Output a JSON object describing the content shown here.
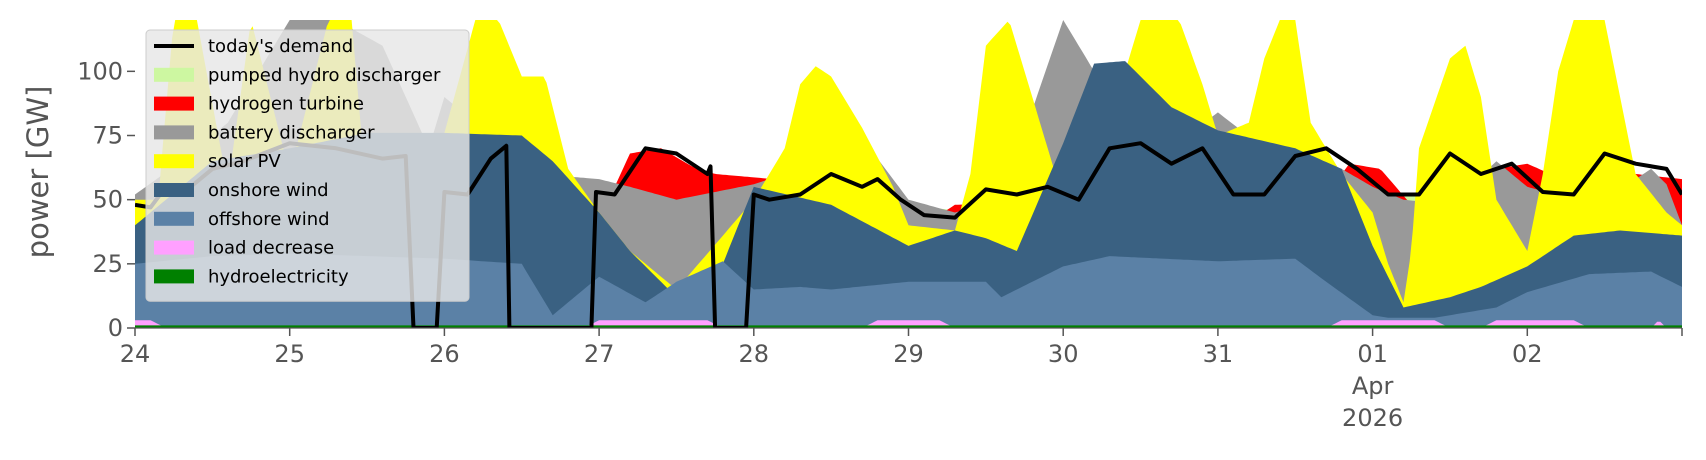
{
  "chart_data": {
    "type": "area",
    "title": "",
    "xlabel": "",
    "ylabel": "power [GW]",
    "ylim": [
      0,
      120
    ],
    "y_ticks": [
      0,
      25,
      50,
      75,
      100
    ],
    "x_start": "2026-03-24",
    "x_end": "2026-04-03",
    "x_tick_labels": [
      "24",
      "25",
      "26",
      "27",
      "28",
      "29",
      "30",
      "31",
      "01",
      "02"
    ],
    "x_secondary_label": [
      "Apr",
      "2026"
    ],
    "grid": false,
    "legend_position": "top-left",
    "layer_order": [
      "hydroelectricity",
      "load decrease",
      "offshore wind",
      "onshore wind",
      "solar PV",
      "battery discharger",
      "hydrogen turbine",
      "pumped hydro discharger"
    ],
    "series": [
      {
        "name": "hydroelectricity",
        "color": "#008000",
        "x": [
          24,
          25,
          26,
          27,
          28,
          29,
          30,
          31,
          32,
          33,
          34
        ],
        "values": [
          1,
          1,
          1,
          1,
          1,
          1,
          1,
          1,
          1,
          1,
          1
        ]
      },
      {
        "name": "load decrease",
        "color": "#ffa0ff",
        "x": [
          24,
          24.1,
          24.2,
          24.3,
          26.9,
          27.0,
          27.1,
          27.7,
          27.8,
          28.7,
          28.8,
          29.2,
          29.3,
          31.7,
          31.8,
          32.4,
          32.5,
          32.7,
          32.8,
          33.3,
          33.4,
          33.8,
          33.85,
          33.9
        ],
        "values": [
          3,
          3,
          0,
          0,
          0,
          3,
          3,
          3,
          0,
          0,
          3,
          3,
          0,
          0,
          3,
          3,
          0,
          0,
          3,
          3,
          0,
          0,
          3,
          0
        ]
      },
      {
        "name": "offshore wind",
        "color": "#5b81a6",
        "x": [
          24,
          24.5,
          25,
          25.5,
          26,
          26.5,
          26.7,
          27,
          27.3,
          27.5,
          27.8,
          28,
          28.3,
          28.5,
          29,
          29.5,
          29.6,
          30,
          30.3,
          31,
          31.5,
          31.7,
          32,
          32.1,
          32.4,
          32.6,
          32.8,
          33,
          33.4,
          33.8,
          34
        ],
        "values": [
          25,
          28,
          29,
          28,
          27,
          25,
          5,
          20,
          10,
          18,
          26,
          15,
          16,
          15,
          18,
          18,
          12,
          24,
          28,
          26,
          27,
          18,
          5,
          4,
          4,
          6,
          8,
          14,
          21,
          22,
          16
        ]
      },
      {
        "name": "onshore wind",
        "color": "#3a6182",
        "x": [
          24,
          24.5,
          25,
          25.5,
          26,
          26.5,
          26.7,
          27,
          27.2,
          27.5,
          27.8,
          28,
          28.5,
          29,
          29.3,
          29.5,
          29.7,
          30,
          30.2,
          30.4,
          30.7,
          31,
          31.5,
          31.8,
          32,
          32.2,
          32.5,
          32.7,
          33,
          33.3,
          33.6,
          34
        ],
        "values": [
          40,
          65,
          70,
          76,
          76,
          75,
          65,
          45,
          30,
          12,
          25,
          55,
          48,
          32,
          38,
          35,
          30,
          72,
          103,
          104,
          86,
          77,
          70,
          62,
          32,
          8,
          12,
          16,
          24,
          36,
          38,
          36
        ]
      },
      {
        "name": "solar PV",
        "color": "#ffff00",
        "x": [
          24,
          24.15,
          24.25,
          24.4,
          24.6,
          24.75,
          25,
          25.25,
          25.4,
          25.5,
          25.75,
          26,
          26.2,
          26.35,
          26.5,
          26.65,
          26.8,
          27,
          27.2,
          27.5,
          28,
          28.2,
          28.3,
          28.4,
          28.5,
          28.7,
          28.9,
          29,
          29.3,
          29.4,
          29.5,
          29.65,
          29.8,
          29.95,
          30,
          30.3,
          30.5,
          30.6,
          30.75,
          30.9,
          31,
          31.2,
          31.3,
          31.4,
          31.5,
          31.6,
          31.8,
          32,
          32.1,
          32.2,
          32.25,
          32.3,
          32.5,
          32.6,
          32.7,
          32.8,
          33,
          33.1,
          33.2,
          33.3,
          33.5,
          33.7,
          33.9,
          34
        ],
        "values": [
          50,
          50,
          120,
          120,
          55,
          120,
          60,
          120,
          120,
          50,
          60,
          76,
          120,
          120,
          98,
          98,
          62,
          45,
          30,
          15,
          50,
          70,
          95,
          102,
          98,
          78,
          55,
          40,
          38,
          60,
          110,
          120,
          90,
          60,
          50,
          80,
          120,
          120,
          120,
          95,
          75,
          80,
          105,
          120,
          120,
          80,
          60,
          45,
          25,
          10,
          30,
          70,
          105,
          110,
          90,
          50,
          30,
          60,
          100,
          120,
          120,
          60,
          45,
          40
        ]
      },
      {
        "name": "battery discharger",
        "color": "#999999",
        "x": [
          24,
          24.3,
          24.6,
          25,
          25.3,
          25.6,
          25.9,
          26,
          26.3,
          26.6,
          27,
          27.2,
          27.5,
          28,
          28.3,
          28.5,
          28.8,
          29,
          29.3,
          29.6,
          30,
          30.3,
          30.6,
          30.8,
          31,
          31.3,
          31.6,
          31.8,
          32,
          32.2,
          32.5,
          32.8,
          33,
          33.3,
          33.6,
          33.8,
          33.9,
          34
        ],
        "values": [
          52,
          65,
          80,
          120,
          120,
          110,
          70,
          90,
          75,
          60,
          58,
          55,
          50,
          56,
          62,
          58,
          66,
          50,
          45,
          50,
          120,
          90,
          80,
          75,
          84,
          70,
          65,
          62,
          55,
          50,
          48,
          65,
          55,
          50,
          54,
          62,
          56,
          40
        ]
      },
      {
        "name": "hydrogen turbine",
        "color": "#ff0000",
        "x": [
          24,
          24.05,
          24.1,
          27,
          27.2,
          27.4,
          27.6,
          27.75,
          28.7,
          28.8,
          28.9,
          29.2,
          29.3,
          31.7,
          31.85,
          32.05,
          32.25,
          32.45,
          32.55,
          32.7,
          32.8,
          33,
          33.15,
          33.3,
          33.45,
          33.6,
          33.7,
          34
        ],
        "values": [
          40,
          48,
          40,
          42,
          68,
          70,
          63,
          60,
          55,
          60,
          52,
          44,
          48,
          52,
          64,
          62,
          48,
          52,
          60,
          58,
          62,
          64,
          60,
          56,
          60,
          64,
          60,
          58
        ]
      },
      {
        "name": "pumped hydro discharger",
        "color": "#cdf7a1",
        "x": [
          24,
          24.1,
          27,
          27.2,
          28.9,
          29.1,
          29.3,
          32,
          32.2,
          32.5,
          33,
          33.2,
          33.5,
          33.8,
          34
        ],
        "values": [
          50,
          48,
          54,
          57,
          50,
          47,
          46,
          54,
          52,
          50,
          56,
          53,
          56,
          60,
          50
        ]
      },
      {
        "name": "today's demand",
        "color": "#000000",
        "x": [
          24,
          24.1,
          24.2,
          24.3,
          24.5,
          24.7,
          25,
          25.3,
          25.6,
          25.75,
          25.8,
          25.85,
          25.95,
          26,
          26.15,
          26.3,
          26.4,
          26.42,
          26.95,
          26.98,
          27.1,
          27.3,
          27.5,
          27.7,
          27.72,
          27.75,
          27.95,
          28,
          28.1,
          28.3,
          28.5,
          28.7,
          28.8,
          28.95,
          29.1,
          29.3,
          29.5,
          29.7,
          29.9,
          30.1,
          30.3,
          30.5,
          30.7,
          30.9,
          31.1,
          31.3,
          31.5,
          31.7,
          31.9,
          32.1,
          32.3,
          32.5,
          32.7,
          32.9,
          33.1,
          33.3,
          33.5,
          33.7,
          33.9,
          34
        ],
        "values": [
          48,
          47,
          55,
          52,
          62,
          65,
          72,
          70,
          66,
          67,
          0,
          0,
          0,
          53,
          52,
          66,
          71,
          0,
          0,
          53,
          52,
          70,
          68,
          60,
          63,
          0,
          0,
          52,
          50,
          52,
          60,
          55,
          58,
          50,
          44,
          43,
          54,
          52,
          55,
          50,
          70,
          72,
          64,
          70,
          52,
          52,
          67,
          70,
          62,
          52,
          52,
          68,
          60,
          64,
          53,
          52,
          68,
          64,
          62,
          52
        ]
      }
    ]
  }
}
